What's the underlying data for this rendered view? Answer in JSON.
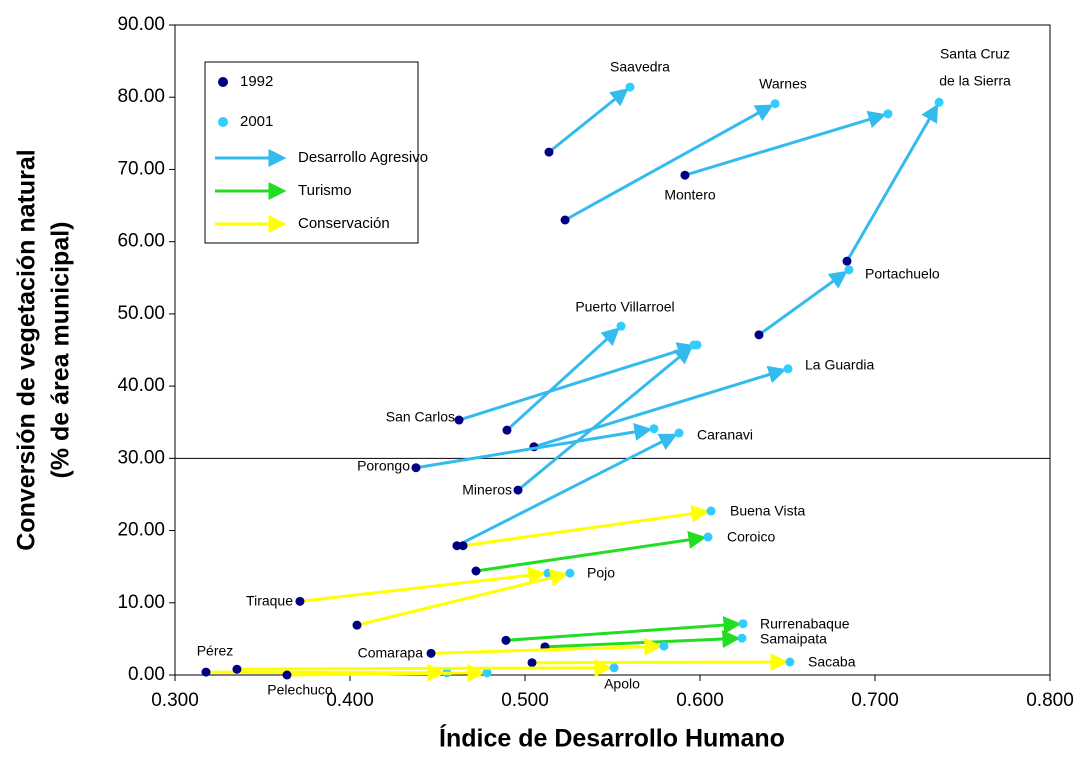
{
  "chart_data": {
    "type": "arrow-scatter",
    "x_label": "Índice de Desarrollo Humano",
    "y_label": [
      "Conversión de vegetación natural",
      "(% de área municipal)"
    ],
    "xlim": [
      0.3,
      0.8
    ],
    "xticks": [
      {
        "value": 0.3,
        "label": "0.300"
      },
      {
        "value": 0.4,
        "label": "0.400"
      },
      {
        "value": 0.5,
        "label": "0.500"
      },
      {
        "value": 0.6,
        "label": "0.600"
      },
      {
        "value": 0.7,
        "label": "0.700"
      },
      {
        "value": 0.8,
        "label": "0.800"
      }
    ],
    "ylim": [
      0,
      90
    ],
    "yticks": [
      {
        "value": 0,
        "label": "0.00"
      },
      {
        "value": 10,
        "label": "10.00"
      },
      {
        "value": 20,
        "label": "20.00"
      },
      {
        "value": 30,
        "label": "30.00"
      },
      {
        "value": 40,
        "label": "40.00"
      },
      {
        "value": 50,
        "label": "50.00"
      },
      {
        "value": 60,
        "label": "60.00"
      },
      {
        "value": 70,
        "label": "70.00"
      },
      {
        "value": 80,
        "label": "80.00"
      },
      {
        "value": 90,
        "label": "90.00"
      }
    ],
    "reference_line": 30,
    "legend": "upper left",
    "series": [
      {
        "name": "1992",
        "color": "#000080"
      },
      {
        "name": "2001",
        "color": "#33ccff"
      }
    ],
    "groups": [
      {
        "name": "Desarrollo Agresivo",
        "color": "#33bbee"
      },
      {
        "name": "Turismo",
        "color": "#22dd22"
      },
      {
        "name": "Conservación",
        "color": "#ffff00"
      }
    ],
    "municipalities": [
      {
        "label": "Saavedra",
        "group": 0,
        "x": [
          0.5137,
          0.56
        ],
        "y": [
          72.4,
          81.4
        ]
      },
      {
        "label": "Warnes",
        "group": 0,
        "x": [
          0.5229,
          0.6429
        ],
        "y": [
          63.0,
          79.1
        ]
      },
      {
        "label": "Montero",
        "group": 0,
        "x": [
          0.5914,
          0.7074
        ],
        "y": [
          69.2,
          77.7
        ]
      },
      {
        "label": [
          "Santa Cruz",
          "de la Sierra"
        ],
        "group": 0,
        "x": [
          0.684,
          0.7366
        ],
        "y": [
          57.3,
          79.3
        ]
      },
      {
        "label": "Portachuelo",
        "group": 0,
        "x": [
          0.6337,
          0.6851
        ],
        "y": [
          47.1,
          56.1
        ]
      },
      {
        "label": "Puerto Villarroel",
        "group": 0,
        "x": [
          0.4897,
          0.5549
        ],
        "y": [
          33.9,
          48.3
        ]
      },
      {
        "label": "San Carlos",
        "group": 0,
        "x": [
          0.4623,
          0.5983
        ],
        "y": [
          35.3,
          45.7
        ]
      },
      {
        "label": "La Guardia",
        "group": 0,
        "x": [
          0.5051,
          0.6503
        ],
        "y": [
          31.6,
          42.4
        ]
      },
      {
        "label": "Porongo",
        "group": 0,
        "x": [
          0.4377,
          0.5737
        ],
        "y": [
          28.7,
          34.1
        ]
      },
      {
        "label": "Caranavi",
        "group": 0,
        "x": [
          0.4611,
          0.588
        ],
        "y": [
          17.9,
          33.5
        ]
      },
      {
        "label": "Mineros",
        "group": 0,
        "x": [
          0.496,
          0.5966
        ],
        "y": [
          25.6,
          45.7
        ]
      },
      {
        "label": "Buena Vista",
        "group": 2,
        "x": [
          0.4646,
          0.6063
        ],
        "y": [
          17.9,
          22.7
        ]
      },
      {
        "label": "Coroico",
        "group": 1,
        "x": [
          0.472,
          0.6046
        ],
        "y": [
          14.4,
          19.1
        ]
      },
      {
        "label": "Tiraque",
        "group": 2,
        "x": [
          0.3714,
          0.5131
        ],
        "y": [
          10.2,
          14.1
        ]
      },
      {
        "label": "Pojo",
        "group": 2,
        "x": [
          0.404,
          0.5257
        ],
        "y": [
          6.9,
          14.1
        ]
      },
      {
        "label": "Rurrenabaque",
        "group": 1,
        "x": [
          0.4891,
          0.6246
        ],
        "y": [
          4.8,
          7.1
        ]
      },
      {
        "label": "Samaipata",
        "group": 1,
        "x": [
          0.5114,
          0.624
        ],
        "y": [
          3.9,
          5.1
        ]
      },
      {
        "label": "Comarapa",
        "group": 2,
        "x": [
          0.4463,
          0.5794
        ],
        "y": [
          3.0,
          4.0
        ]
      },
      {
        "label": "Sacaba",
        "group": 2,
        "x": [
          0.504,
          0.6514
        ],
        "y": [
          1.7,
          1.8
        ]
      },
      {
        "label": "Pérez",
        "group": 2,
        "x": [
          0.3177,
          0.4554
        ],
        "y": [
          0.4,
          0.3
        ]
      },
      {
        "label": "Pelechuco",
        "group": 2,
        "x": [
          0.364,
          0.4783
        ],
        "y": [
          0.0,
          0.3
        ]
      },
      {
        "label": "Apolo",
        "group": 2,
        "x": [
          0.3354,
          0.5509
        ],
        "y": [
          0.8,
          1.0
        ]
      }
    ]
  }
}
